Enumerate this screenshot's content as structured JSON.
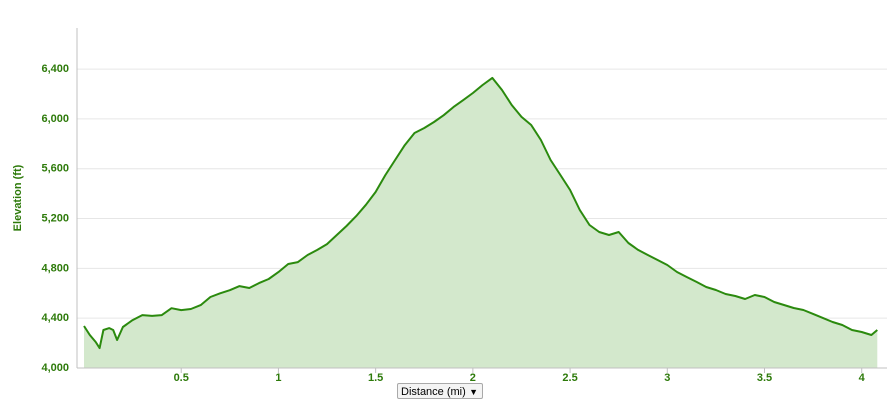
{
  "chart_data": {
    "type": "area",
    "y_label": "Elevation (ft)",
    "x_label": "Distance (mi)",
    "x": [
      0,
      0.03,
      0.06,
      0.08,
      0.1,
      0.13,
      0.15,
      0.17,
      0.2,
      0.25,
      0.3,
      0.35,
      0.4,
      0.45,
      0.5,
      0.55,
      0.6,
      0.65,
      0.7,
      0.75,
      0.8,
      0.85,
      0.9,
      0.95,
      1.0,
      1.05,
      1.1,
      1.15,
      1.2,
      1.25,
      1.3,
      1.35,
      1.4,
      1.45,
      1.5,
      1.55,
      1.6,
      1.65,
      1.7,
      1.75,
      1.8,
      1.85,
      1.9,
      1.95,
      2.0,
      2.05,
      2.1,
      2.15,
      2.2,
      2.25,
      2.3,
      2.35,
      2.4,
      2.45,
      2.5,
      2.55,
      2.6,
      2.65,
      2.7,
      2.75,
      2.8,
      2.85,
      2.9,
      2.95,
      3.0,
      3.05,
      3.1,
      3.15,
      3.2,
      3.25,
      3.3,
      3.35,
      3.4,
      3.45,
      3.5,
      3.55,
      3.6,
      3.65,
      3.7,
      3.75,
      3.8,
      3.85,
      3.9,
      3.95,
      4.0,
      4.05,
      4.08
    ],
    "values": [
      4337,
      4265,
      4209,
      4160,
      4305,
      4320,
      4305,
      4225,
      4329,
      4385,
      4425,
      4418,
      4425,
      4480,
      4465,
      4474,
      4505,
      4570,
      4600,
      4625,
      4658,
      4642,
      4682,
      4715,
      4770,
      4835,
      4850,
      4907,
      4948,
      4995,
      5068,
      5140,
      5220,
      5310,
      5413,
      5550,
      5670,
      5790,
      5887,
      5927,
      5975,
      6030,
      6095,
      6150,
      6208,
      6272,
      6329,
      6232,
      6112,
      6016,
      5951,
      5831,
      5670,
      5550,
      5429,
      5269,
      5148,
      5092,
      5068,
      5092,
      5004,
      4948,
      4907,
      4867,
      4827,
      4771,
      4731,
      4691,
      4650,
      4626,
      4594,
      4578,
      4554,
      4586,
      4570,
      4530,
      4506,
      4482,
      4466,
      4434,
      4402,
      4369,
      4345,
      4305,
      4289,
      4265,
      4305
    ],
    "color": "#2b8a0e",
    "area_color": "#d3e8cc",
    "label_color": "#2d7a0a",
    "xlim": [
      -0.036,
      4.13
    ],
    "ylim": [
      4000,
      6730
    ],
    "xticks": [
      0.5,
      1,
      1.5,
      2,
      2.5,
      3,
      3.5,
      4
    ],
    "yticks": [
      {
        "value": 4000,
        "label": "4,000"
      },
      {
        "value": 4400,
        "label": "4,400"
      },
      {
        "value": 4800,
        "label": "4,800"
      },
      {
        "value": 5200,
        "label": "5,200"
      },
      {
        "value": 5600,
        "label": "5,600"
      },
      {
        "value": 6000,
        "label": "6,000"
      },
      {
        "value": 6400,
        "label": "6,400"
      }
    ],
    "grid": true
  }
}
